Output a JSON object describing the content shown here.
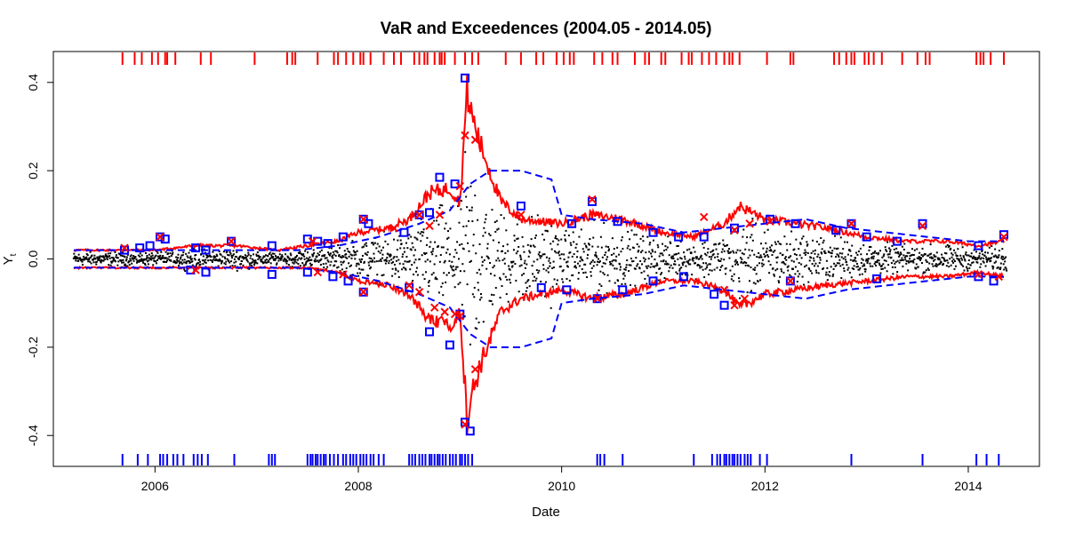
{
  "chart_data": {
    "type": "scatter",
    "title": "VaR and Exceedences (2004.05 - 2014.05)",
    "xlabel": "Date",
    "ylabel": "Y",
    "ylabel_subscript": "t",
    "xlim": [
      2005.0,
      2014.7
    ],
    "ylim": [
      -0.47,
      0.47
    ],
    "x_ticks": [
      2006,
      2008,
      2010,
      2012,
      2014
    ],
    "x_tick_labels": [
      "2006",
      "2008",
      "2010",
      "2012",
      "2014"
    ],
    "y_ticks": [
      0.4,
      0.2,
      0.0,
      -0.2,
      -0.4
    ],
    "y_tick_labels": [
      "0.4",
      "0.2",
      "0.0",
      "-0.2",
      "-0.4"
    ],
    "colors": {
      "returns": "#000000",
      "var_model_1": "#ff0000",
      "var_model_2": "#0000ff",
      "frame": "#000000"
    },
    "series": [
      {
        "name": "VaR upper (red, solid)",
        "style": "solid",
        "color": "#ff0000",
        "x": [
          2005.2,
          2005.6,
          2006.0,
          2006.4,
          2006.8,
          2007.2,
          2007.5,
          2007.8,
          2008.0,
          2008.3,
          2008.5,
          2008.7,
          2008.9,
          2009.0,
          2009.07,
          2009.1,
          2009.2,
          2009.4,
          2009.6,
          2010.0,
          2010.3,
          2010.6,
          2011.0,
          2011.3,
          2011.6,
          2011.75,
          2012.0,
          2012.3,
          2012.6,
          2013.0,
          2013.4,
          2013.8,
          2014.1,
          2014.35
        ],
        "values": [
          0.02,
          0.02,
          0.02,
          0.03,
          0.03,
          0.02,
          0.03,
          0.04,
          0.06,
          0.07,
          0.09,
          0.15,
          0.16,
          0.13,
          0.38,
          0.34,
          0.26,
          0.13,
          0.09,
          0.08,
          0.1,
          0.09,
          0.06,
          0.05,
          0.08,
          0.12,
          0.09,
          0.08,
          0.07,
          0.05,
          0.04,
          0.04,
          0.03,
          0.04
        ]
      },
      {
        "name": "VaR lower (red, solid)",
        "style": "solid",
        "color": "#ff0000",
        "x": [
          2005.2,
          2005.6,
          2006.0,
          2006.4,
          2006.8,
          2007.2,
          2007.5,
          2007.8,
          2008.0,
          2008.3,
          2008.5,
          2008.7,
          2008.9,
          2009.0,
          2009.07,
          2009.1,
          2009.2,
          2009.4,
          2009.6,
          2010.0,
          2010.3,
          2010.6,
          2011.0,
          2011.3,
          2011.6,
          2011.75,
          2012.0,
          2012.3,
          2012.6,
          2013.0,
          2013.4,
          2013.8,
          2014.1,
          2014.35
        ],
        "values": [
          -0.02,
          -0.02,
          -0.02,
          -0.02,
          -0.02,
          -0.02,
          -0.02,
          -0.03,
          -0.05,
          -0.06,
          -0.08,
          -0.14,
          -0.15,
          -0.12,
          -0.36,
          -0.32,
          -0.24,
          -0.12,
          -0.09,
          -0.07,
          -0.09,
          -0.08,
          -0.05,
          -0.05,
          -0.07,
          -0.11,
          -0.08,
          -0.07,
          -0.06,
          -0.05,
          -0.04,
          -0.04,
          -0.03,
          -0.04
        ]
      },
      {
        "name": "VaR upper (blue, dashed)",
        "style": "dashed",
        "color": "#0000ff",
        "x": [
          2005.2,
          2006.0,
          2006.8,
          2007.4,
          2007.8,
          2008.2,
          2008.6,
          2008.9,
          2009.1,
          2009.3,
          2009.6,
          2009.9,
          2010.0,
          2010.3,
          2010.8,
          2011.2,
          2011.6,
          2012.0,
          2012.4,
          2012.8,
          2013.2,
          2013.6,
          2014.0,
          2014.35
        ],
        "values": [
          0.02,
          0.02,
          0.02,
          0.02,
          0.03,
          0.05,
          0.08,
          0.11,
          0.17,
          0.2,
          0.2,
          0.18,
          0.1,
          0.09,
          0.08,
          0.06,
          0.07,
          0.08,
          0.09,
          0.07,
          0.06,
          0.05,
          0.04,
          0.04
        ]
      },
      {
        "name": "VaR lower (blue, dashed)",
        "style": "dashed",
        "color": "#0000ff",
        "x": [
          2005.2,
          2006.0,
          2006.8,
          2007.4,
          2007.8,
          2008.2,
          2008.6,
          2008.9,
          2009.1,
          2009.3,
          2009.6,
          2009.9,
          2010.0,
          2010.3,
          2010.8,
          2011.2,
          2011.6,
          2012.0,
          2012.4,
          2012.8,
          2013.2,
          2013.6,
          2014.0,
          2014.35
        ],
        "values": [
          -0.02,
          -0.02,
          -0.02,
          -0.02,
          -0.03,
          -0.05,
          -0.08,
          -0.11,
          -0.17,
          -0.2,
          -0.2,
          -0.18,
          -0.1,
          -0.09,
          -0.08,
          -0.06,
          -0.07,
          -0.08,
          -0.09,
          -0.07,
          -0.06,
          -0.05,
          -0.04,
          -0.04
        ]
      }
    ],
    "exceedances_blue_squares": {
      "x": [
        2005.7,
        2005.85,
        2005.95,
        2006.05,
        2006.1,
        2006.4,
        2006.5,
        2006.75,
        2007.15,
        2007.5,
        2007.6,
        2007.7,
        2007.85,
        2008.05,
        2008.1,
        2008.45,
        2008.6,
        2008.7,
        2008.8,
        2008.95,
        2009.05,
        2009.6,
        2010.1,
        2010.3,
        2010.55,
        2010.9,
        2011.15,
        2011.4,
        2011.7,
        2012.05,
        2012.3,
        2012.7,
        2012.85,
        2013.0,
        2013.3,
        2013.55,
        2014.1,
        2014.35,
        2005.7,
        2006.35,
        2006.5,
        2007.15,
        2007.5,
        2007.75,
        2007.9,
        2008.05,
        2008.5,
        2008.7,
        2008.9,
        2009.0,
        2009.05,
        2009.1,
        2009.8,
        2010.05,
        2010.35,
        2010.6,
        2010.9,
        2011.2,
        2011.5,
        2011.6,
        2012.25,
        2013.1,
        2014.1,
        2014.25
      ],
      "values": [
        0.02,
        0.025,
        0.03,
        0.05,
        0.045,
        0.025,
        0.02,
        0.04,
        0.03,
        0.045,
        0.04,
        0.035,
        0.05,
        0.09,
        0.08,
        0.06,
        0.1,
        0.105,
        0.185,
        0.17,
        0.41,
        0.12,
        0.08,
        0.13,
        0.085,
        0.06,
        0.05,
        0.05,
        0.07,
        0.09,
        0.08,
        0.065,
        0.08,
        0.05,
        0.04,
        0.08,
        0.03,
        0.055,
        0.02,
        -0.025,
        -0.03,
        -0.035,
        -0.03,
        -0.04,
        -0.05,
        -0.075,
        -0.065,
        -0.165,
        -0.195,
        -0.125,
        -0.37,
        -0.39,
        -0.065,
        -0.07,
        -0.09,
        -0.07,
        -0.05,
        -0.04,
        -0.08,
        -0.105,
        -0.05,
        -0.045,
        -0.04,
        -0.05
      ]
    },
    "exceedances_red_crosses": {
      "x": [
        2005.7,
        2006.05,
        2006.75,
        2007.55,
        2008.05,
        2008.35,
        2008.6,
        2008.7,
        2008.8,
        2009.0,
        2009.05,
        2009.15,
        2009.6,
        2010.3,
        2011.4,
        2011.7,
        2011.85,
        2012.05,
        2012.85,
        2013.55,
        2014.35,
        2006.4,
        2007.6,
        2007.85,
        2008.05,
        2008.5,
        2008.6,
        2008.75,
        2008.85,
        2008.95,
        2009.0,
        2009.05,
        2009.15,
        2010.35,
        2011.6,
        2011.7,
        2011.8,
        2012.25,
        2014.1,
        2014.3
      ],
      "values": [
        0.025,
        0.05,
        0.04,
        0.04,
        0.09,
        0.07,
        0.1,
        0.075,
        0.1,
        0.165,
        0.28,
        0.27,
        0.1,
        0.135,
        0.095,
        0.065,
        0.08,
        0.085,
        0.08,
        0.075,
        0.05,
        -0.025,
        -0.03,
        -0.035,
        -0.075,
        -0.06,
        -0.075,
        -0.11,
        -0.12,
        -0.125,
        -0.13,
        -0.375,
        -0.25,
        -0.09,
        -0.07,
        -0.105,
        -0.09,
        -0.05,
        -0.035,
        -0.04
      ]
    },
    "rug_top_red": [
      2005.68,
      2005.8,
      2005.87,
      2005.97,
      2006.03,
      2006.1,
      2006.12,
      2006.2,
      2006.45,
      2006.55,
      2006.98,
      2007.3,
      2007.35,
      2007.38,
      2007.6,
      2007.76,
      2007.8,
      2007.88,
      2007.95,
      2008.02,
      2008.05,
      2008.12,
      2008.25,
      2008.35,
      2008.42,
      2008.55,
      2008.6,
      2008.65,
      2008.68,
      2008.75,
      2008.8,
      2008.82,
      2008.85,
      2008.95,
      2009.05,
      2009.12,
      2009.18,
      2009.45,
      2009.6,
      2009.75,
      2009.82,
      2009.95,
      2010.02,
      2010.08,
      2010.12,
      2010.32,
      2010.4,
      2010.5,
      2010.55,
      2010.72,
      2010.82,
      2010.86,
      2010.98,
      2011.02,
      2011.18,
      2011.25,
      2011.28,
      2011.38,
      2011.45,
      2011.52,
      2011.6,
      2011.65,
      2011.68,
      2011.75,
      2012.02,
      2012.25,
      2012.28,
      2012.68,
      2012.73,
      2012.8,
      2012.85,
      2012.88,
      2012.98,
      2013.02,
      2013.07,
      2013.15,
      2013.35,
      2013.5,
      2013.58,
      2013.62,
      2014.08,
      2014.12,
      2014.15,
      2014.22,
      2014.35
    ],
    "rug_bottom_blue": [
      2005.68,
      2005.83,
      2005.93,
      2006.05,
      2006.08,
      2006.12,
      2006.18,
      2006.22,
      2006.28,
      2006.38,
      2006.42,
      2006.46,
      2006.52,
      2006.78,
      2007.12,
      2007.15,
      2007.18,
      2007.5,
      2007.53,
      2007.55,
      2007.58,
      2007.6,
      2007.63,
      2007.66,
      2007.68,
      2007.72,
      2007.76,
      2007.8,
      2007.85,
      2007.88,
      2007.92,
      2007.95,
      2007.98,
      2008.02,
      2008.05,
      2008.08,
      2008.12,
      2008.15,
      2008.2,
      2008.25,
      2008.5,
      2008.53,
      2008.56,
      2008.6,
      2008.63,
      2008.66,
      2008.7,
      2008.72,
      2008.75,
      2008.78,
      2008.8,
      2008.83,
      2008.86,
      2008.9,
      2008.93,
      2008.96,
      2009.0,
      2009.02,
      2009.05,
      2009.08,
      2009.12,
      2010.35,
      2010.38,
      2010.42,
      2010.6,
      2011.3,
      2011.48,
      2011.53,
      2011.56,
      2011.6,
      2011.62,
      2011.65,
      2011.68,
      2011.7,
      2011.73,
      2011.76,
      2011.8,
      2011.83,
      2011.86,
      2011.95,
      2012.02,
      2012.85,
      2013.55,
      2014.08,
      2014.18,
      2014.3
    ]
  }
}
